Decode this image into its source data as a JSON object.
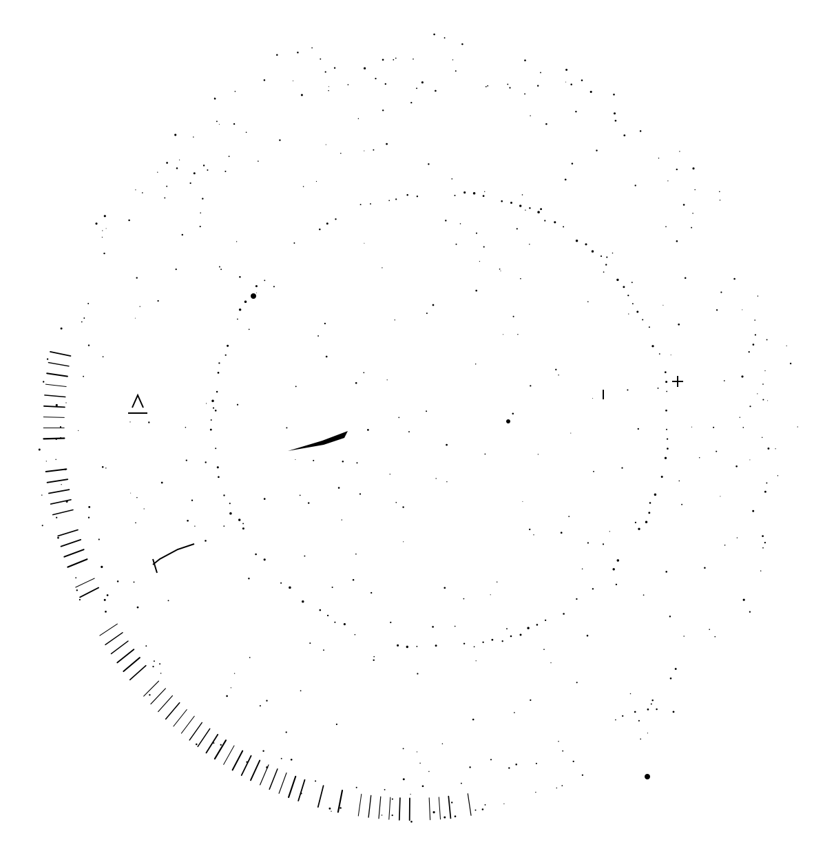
{
  "colors": {
    "background": "#ffffff",
    "ink": "#000000"
  },
  "scene": {
    "description_free": true,
    "elements": [
      "outer-dotted-ring",
      "inner-dotted-ring",
      "outer-tick-marks",
      "center-needle",
      "scattered-specks"
    ]
  }
}
